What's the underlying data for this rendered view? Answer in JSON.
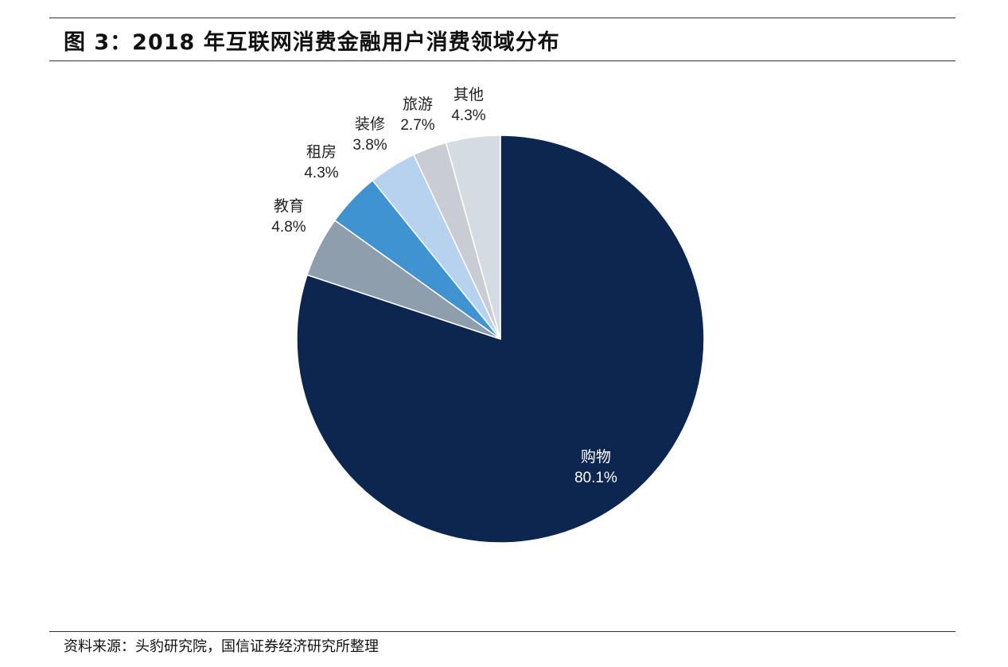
{
  "figure": {
    "title": "图 3：2018 年互联网消费金融用户消费领域分布",
    "source": "资料来源：头豹研究院，国信证券经济研究所整理"
  },
  "chart_data": {
    "type": "pie",
    "slices": [
      {
        "name": "购物",
        "label": "80.1%",
        "value": 80.1,
        "color": "#0c2650"
      },
      {
        "name": "教育",
        "label": "4.8%",
        "value": 4.8,
        "color": "#8f9ead"
      },
      {
        "name": "租房",
        "label": "4.3%",
        "value": 4.3,
        "color": "#3f93d1"
      },
      {
        "name": "装修",
        "label": "3.8%",
        "value": 3.8,
        "color": "#b7d2ef"
      },
      {
        "name": "旅游",
        "label": "2.7%",
        "value": 2.7,
        "color": "#c9ccd2"
      },
      {
        "name": "其他",
        "label": "4.3%",
        "value": 4.3,
        "color": "#d5dbe3"
      }
    ],
    "legend": "none",
    "start": "12 o'clock",
    "direction": "clockwise"
  }
}
